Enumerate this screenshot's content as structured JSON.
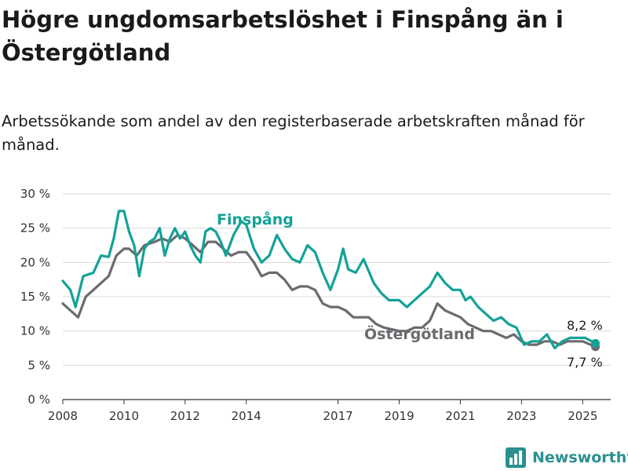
{
  "title": "Högre ungdomsarbetslöshet i Finspång än i Östergötland",
  "subtitle": "Arbetssökande som andel av den registerbaserade arbetskraften månad för månad.",
  "brand": {
    "name": "Newsworthy",
    "icon": "bar-chart-logo-icon"
  },
  "colors": {
    "finspang": "#13a297",
    "ostergotland": "#6b6b6f",
    "grid": "#d9d9d9",
    "axis": "#333333"
  },
  "chart_data": {
    "type": "line",
    "title": "Högre ungdomsarbetslöshet i Finspång än i Östergötland",
    "subtitle": "Arbetssökande som andel av den registerbaserade arbetskraften månad för månad.",
    "xlabel": "",
    "ylabel": "",
    "xlim": [
      "2008-01",
      "2025-12"
    ],
    "ylim": [
      0,
      30
    ],
    "y_ticks": [
      "0 %",
      "5 %",
      "10 %",
      "15 %",
      "20 %",
      "25 %",
      "30 %"
    ],
    "y_tick_values": [
      0,
      5,
      10,
      15,
      20,
      25,
      30
    ],
    "x_ticks": [
      "2008",
      "2010",
      "2012",
      "2014",
      "2017",
      "2019",
      "2021",
      "2023",
      "2025"
    ],
    "x_tick_values": [
      "2008-01",
      "2010-01",
      "2012-01",
      "2014-01",
      "2017-01",
      "2019-01",
      "2021-01",
      "2023-01",
      "2025-01"
    ],
    "grid": true,
    "legend": "inline labels",
    "annotations": [
      {
        "series": "Finspång",
        "text": "8,2 %",
        "date": "2025-06",
        "value": 8.2
      },
      {
        "series": "Östergötland",
        "text": "7,7 %",
        "date": "2025-06",
        "value": 7.7
      }
    ],
    "series": [
      {
        "name": "Finspång",
        "color": "#13a297",
        "points": [
          [
            "2008-01",
            17.3
          ],
          [
            "2008-04",
            16.0
          ],
          [
            "2008-06",
            13.5
          ],
          [
            "2008-09",
            18.0
          ],
          [
            "2009-01",
            18.5
          ],
          [
            "2009-04",
            21.0
          ],
          [
            "2009-07",
            20.8
          ],
          [
            "2009-09",
            23.5
          ],
          [
            "2009-11",
            27.5
          ],
          [
            "2010-01",
            27.5
          ],
          [
            "2010-03",
            24.5
          ],
          [
            "2010-05",
            22.5
          ],
          [
            "2010-07",
            18.0
          ],
          [
            "2010-09",
            22.0
          ],
          [
            "2010-11",
            23.0
          ],
          [
            "2011-01",
            23.5
          ],
          [
            "2011-03",
            25.0
          ],
          [
            "2011-05",
            21.0
          ],
          [
            "2011-07",
            23.5
          ],
          [
            "2011-09",
            25.0
          ],
          [
            "2011-11",
            23.5
          ],
          [
            "2012-01",
            24.5
          ],
          [
            "2012-03",
            22.5
          ],
          [
            "2012-05",
            21.0
          ],
          [
            "2012-07",
            20.0
          ],
          [
            "2012-09",
            24.5
          ],
          [
            "2012-11",
            25.0
          ],
          [
            "2013-01",
            24.5
          ],
          [
            "2013-03",
            23.0
          ],
          [
            "2013-05",
            21.0
          ],
          [
            "2013-08",
            24.0
          ],
          [
            "2013-11",
            26.0
          ],
          [
            "2014-01",
            25.5
          ],
          [
            "2014-04",
            22.0
          ],
          [
            "2014-07",
            20.0
          ],
          [
            "2014-10",
            21.0
          ],
          [
            "2015-01",
            24.0
          ],
          [
            "2015-04",
            22.0
          ],
          [
            "2015-07",
            20.5
          ],
          [
            "2015-10",
            20.0
          ],
          [
            "2016-01",
            22.5
          ],
          [
            "2016-04",
            21.5
          ],
          [
            "2016-07",
            18.5
          ],
          [
            "2016-10",
            16.0
          ],
          [
            "2017-01",
            19.0
          ],
          [
            "2017-03",
            22.0
          ],
          [
            "2017-05",
            19.0
          ],
          [
            "2017-08",
            18.5
          ],
          [
            "2017-11",
            20.5
          ],
          [
            "2018-03",
            17.0
          ],
          [
            "2018-06",
            15.5
          ],
          [
            "2018-09",
            14.5
          ],
          [
            "2019-01",
            14.5
          ],
          [
            "2019-04",
            13.5
          ],
          [
            "2019-07",
            14.5
          ],
          [
            "2019-10",
            15.5
          ],
          [
            "2020-01",
            16.5
          ],
          [
            "2020-04",
            18.5
          ],
          [
            "2020-07",
            17.0
          ],
          [
            "2020-10",
            16.0
          ],
          [
            "2021-01",
            16.0
          ],
          [
            "2021-03",
            14.5
          ],
          [
            "2021-05",
            15.0
          ],
          [
            "2021-08",
            13.5
          ],
          [
            "2021-11",
            12.5
          ],
          [
            "2022-02",
            11.5
          ],
          [
            "2022-05",
            12.0
          ],
          [
            "2022-08",
            11.0
          ],
          [
            "2022-11",
            10.5
          ],
          [
            "2023-02",
            8.0
          ],
          [
            "2023-05",
            8.5
          ],
          [
            "2023-08",
            8.5
          ],
          [
            "2023-11",
            9.5
          ],
          [
            "2024-02",
            7.5
          ],
          [
            "2024-05",
            8.5
          ],
          [
            "2024-08",
            9.0
          ],
          [
            "2024-11",
            9.0
          ],
          [
            "2025-02",
            9.0
          ],
          [
            "2025-06",
            8.2
          ]
        ]
      },
      {
        "name": "Östergötland",
        "color": "#6b6b6f",
        "points": [
          [
            "2008-01",
            14.0
          ],
          [
            "2008-04",
            13.0
          ],
          [
            "2008-07",
            12.0
          ],
          [
            "2008-10",
            15.0
          ],
          [
            "2009-01",
            16.0
          ],
          [
            "2009-04",
            17.0
          ],
          [
            "2009-07",
            18.0
          ],
          [
            "2009-10",
            21.0
          ],
          [
            "2010-01",
            22.0
          ],
          [
            "2010-03",
            22.0
          ],
          [
            "2010-06",
            21.0
          ],
          [
            "2010-09",
            22.5
          ],
          [
            "2011-01",
            23.0
          ],
          [
            "2011-04",
            23.5
          ],
          [
            "2011-07",
            23.0
          ],
          [
            "2011-10",
            24.0
          ],
          [
            "2012-01",
            23.5
          ],
          [
            "2012-04",
            22.5
          ],
          [
            "2012-07",
            21.5
          ],
          [
            "2012-10",
            23.0
          ],
          [
            "2013-01",
            23.0
          ],
          [
            "2013-04",
            22.0
          ],
          [
            "2013-07",
            21.0
          ],
          [
            "2013-10",
            21.5
          ],
          [
            "2014-01",
            21.5
          ],
          [
            "2014-04",
            20.0
          ],
          [
            "2014-07",
            18.0
          ],
          [
            "2014-10",
            18.5
          ],
          [
            "2015-01",
            18.5
          ],
          [
            "2015-04",
            17.5
          ],
          [
            "2015-07",
            16.0
          ],
          [
            "2015-10",
            16.5
          ],
          [
            "2016-01",
            16.5
          ],
          [
            "2016-04",
            16.0
          ],
          [
            "2016-07",
            14.0
          ],
          [
            "2016-10",
            13.5
          ],
          [
            "2017-01",
            13.5
          ],
          [
            "2017-04",
            13.0
          ],
          [
            "2017-07",
            12.0
          ],
          [
            "2017-10",
            12.0
          ],
          [
            "2018-01",
            12.0
          ],
          [
            "2018-04",
            11.0
          ],
          [
            "2018-07",
            10.5
          ],
          [
            "2019-01",
            10.0
          ],
          [
            "2019-04",
            10.0
          ],
          [
            "2019-07",
            10.5
          ],
          [
            "2019-10",
            10.5
          ],
          [
            "2020-01",
            11.5
          ],
          [
            "2020-04",
            14.0
          ],
          [
            "2020-07",
            13.0
          ],
          [
            "2020-10",
            12.5
          ],
          [
            "2021-01",
            12.0
          ],
          [
            "2021-04",
            11.0
          ],
          [
            "2021-07",
            10.5
          ],
          [
            "2021-10",
            10.0
          ],
          [
            "2022-01",
            10.0
          ],
          [
            "2022-04",
            9.5
          ],
          [
            "2022-07",
            9.0
          ],
          [
            "2022-10",
            9.5
          ],
          [
            "2023-01",
            8.5
          ],
          [
            "2023-04",
            8.0
          ],
          [
            "2023-07",
            8.0
          ],
          [
            "2023-10",
            8.5
          ],
          [
            "2024-01",
            8.5
          ],
          [
            "2024-04",
            8.0
          ],
          [
            "2024-07",
            8.5
          ],
          [
            "2024-10",
            8.5
          ],
          [
            "2025-01",
            8.5
          ],
          [
            "2025-06",
            7.7
          ]
        ]
      }
    ]
  }
}
